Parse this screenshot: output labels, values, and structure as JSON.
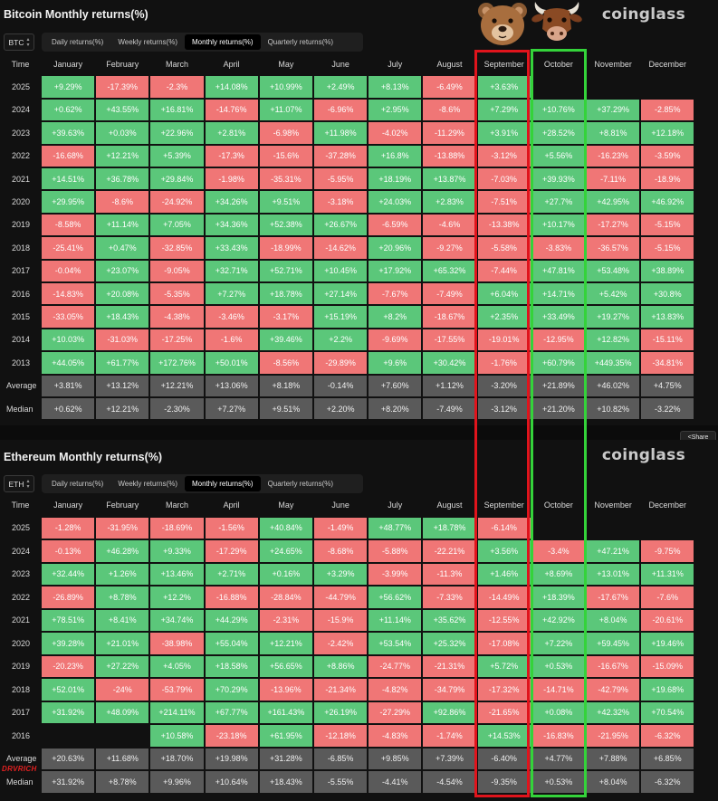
{
  "colors": {
    "positive": "#5bc77a",
    "negative": "#f07676",
    "stat": "#5a5a5a",
    "highlight_sep": "#e0141c",
    "highlight_oct": "#34d33a"
  },
  "months": [
    "January",
    "February",
    "March",
    "April",
    "May",
    "June",
    "July",
    "August",
    "September",
    "October",
    "November",
    "December"
  ],
  "time_label": "Time",
  "share_label": "Share",
  "watermark": "DRVRICH",
  "icons": {
    "bear": "bear-face-icon",
    "bull": "bull-face-icon",
    "share": "share-icon",
    "selector": "chevron-updown-icon"
  },
  "btc": {
    "title": "Bitcoin Monthly returns(%)",
    "brand": "coinglass",
    "coin": "BTC",
    "tabs": [
      "Daily returns(%)",
      "Weekly returns(%)",
      "Monthly returns(%)",
      "Quarterly returns(%)"
    ],
    "active_tab": 2,
    "rows": [
      {
        "year": "2025",
        "values": [
          "+9.29%",
          "-17.39%",
          "-2.3%",
          "+14.08%",
          "+10.99%",
          "+2.49%",
          "+8.13%",
          "-6.49%",
          "+3.63%",
          "",
          "",
          ""
        ]
      },
      {
        "year": "2024",
        "values": [
          "+0.62%",
          "+43.55%",
          "+16.81%",
          "-14.76%",
          "+11.07%",
          "-6.96%",
          "+2.95%",
          "-8.6%",
          "+7.29%",
          "+10.76%",
          "+37.29%",
          "-2.85%"
        ]
      },
      {
        "year": "2023",
        "values": [
          "+39.63%",
          "+0.03%",
          "+22.96%",
          "+2.81%",
          "-6.98%",
          "+11.98%",
          "-4.02%",
          "-11.29%",
          "+3.91%",
          "+28.52%",
          "+8.81%",
          "+12.18%"
        ]
      },
      {
        "year": "2022",
        "values": [
          "-16.68%",
          "+12.21%",
          "+5.39%",
          "-17.3%",
          "-15.6%",
          "-37.28%",
          "+16.8%",
          "-13.88%",
          "-3.12%",
          "+5.56%",
          "-16.23%",
          "-3.59%"
        ]
      },
      {
        "year": "2021",
        "values": [
          "+14.51%",
          "+36.78%",
          "+29.84%",
          "-1.98%",
          "-35.31%",
          "-5.95%",
          "+18.19%",
          "+13.87%",
          "-7.03%",
          "+39.93%",
          "-7.11%",
          "-18.9%"
        ]
      },
      {
        "year": "2020",
        "values": [
          "+29.95%",
          "-8.6%",
          "-24.92%",
          "+34.26%",
          "+9.51%",
          "-3.18%",
          "+24.03%",
          "+2.83%",
          "-7.51%",
          "+27.7%",
          "+42.95%",
          "+46.92%"
        ]
      },
      {
        "year": "2019",
        "values": [
          "-8.58%",
          "+11.14%",
          "+7.05%",
          "+34.36%",
          "+52.38%",
          "+26.67%",
          "-6.59%",
          "-4.6%",
          "-13.38%",
          "+10.17%",
          "-17.27%",
          "-5.15%"
        ]
      },
      {
        "year": "2018",
        "values": [
          "-25.41%",
          "+0.47%",
          "-32.85%",
          "+33.43%",
          "-18.99%",
          "-14.62%",
          "+20.96%",
          "-9.27%",
          "-5.58%",
          "-3.83%",
          "-36.57%",
          "-5.15%"
        ]
      },
      {
        "year": "2017",
        "values": [
          "-0.04%",
          "+23.07%",
          "-9.05%",
          "+32.71%",
          "+52.71%",
          "+10.45%",
          "+17.92%",
          "+65.32%",
          "-7.44%",
          "+47.81%",
          "+53.48%",
          "+38.89%"
        ]
      },
      {
        "year": "2016",
        "values": [
          "-14.83%",
          "+20.08%",
          "-5.35%",
          "+7.27%",
          "+18.78%",
          "+27.14%",
          "-7.67%",
          "-7.49%",
          "+6.04%",
          "+14.71%",
          "+5.42%",
          "+30.8%"
        ]
      },
      {
        "year": "2015",
        "values": [
          "-33.05%",
          "+18.43%",
          "-4.38%",
          "-3.46%",
          "-3.17%",
          "+15.19%",
          "+8.2%",
          "-18.67%",
          "+2.35%",
          "+33.49%",
          "+19.27%",
          "+13.83%"
        ]
      },
      {
        "year": "2014",
        "values": [
          "+10.03%",
          "-31.03%",
          "-17.25%",
          "-1.6%",
          "+39.46%",
          "+2.2%",
          "-9.69%",
          "-17.55%",
          "-19.01%",
          "-12.95%",
          "+12.82%",
          "-15.11%"
        ]
      },
      {
        "year": "2013",
        "values": [
          "+44.05%",
          "+61.77%",
          "+172.76%",
          "+50.01%",
          "-8.56%",
          "-29.89%",
          "+9.6%",
          "+30.42%",
          "-1.76%",
          "+60.79%",
          "+449.35%",
          "-34.81%"
        ]
      }
    ],
    "stats": [
      {
        "label": "Average",
        "values": [
          "+3.81%",
          "+13.12%",
          "+12.21%",
          "+13.06%",
          "+8.18%",
          "-0.14%",
          "+7.60%",
          "+1.12%",
          "-3.20%",
          "+21.89%",
          "+46.02%",
          "+4.75%"
        ]
      },
      {
        "label": "Median",
        "values": [
          "+0.62%",
          "+12.21%",
          "-2.30%",
          "+7.27%",
          "+9.51%",
          "+2.20%",
          "+8.20%",
          "-7.49%",
          "-3.12%",
          "+21.20%",
          "+10.82%",
          "-3.22%"
        ]
      }
    ]
  },
  "eth": {
    "title": "Ethereum Monthly returns(%)",
    "brand": "coinglass",
    "coin": "ETH",
    "tabs": [
      "Daily returns(%)",
      "Weekly returns(%)",
      "Monthly returns(%)",
      "Quarterly returns(%)"
    ],
    "active_tab": 2,
    "rows": [
      {
        "year": "2025",
        "values": [
          "-1.28%",
          "-31.95%",
          "-18.69%",
          "-1.56%",
          "+40.84%",
          "-1.49%",
          "+48.77%",
          "+18.78%",
          "-6.14%",
          "",
          "",
          ""
        ]
      },
      {
        "year": "2024",
        "values": [
          "-0.13%",
          "+46.28%",
          "+9.33%",
          "-17.29%",
          "+24.65%",
          "-8.68%",
          "-5.88%",
          "-22.21%",
          "+3.56%",
          "-3.4%",
          "+47.21%",
          "-9.75%"
        ]
      },
      {
        "year": "2023",
        "values": [
          "+32.44%",
          "+1.26%",
          "+13.46%",
          "+2.71%",
          "+0.16%",
          "+3.29%",
          "-3.99%",
          "-11.3%",
          "+1.46%",
          "+8.69%",
          "+13.01%",
          "+11.31%"
        ]
      },
      {
        "year": "2022",
        "values": [
          "-26.89%",
          "+8.78%",
          "+12.2%",
          "-16.88%",
          "-28.84%",
          "-44.79%",
          "+56.62%",
          "-7.33%",
          "-14.49%",
          "+18.39%",
          "-17.67%",
          "-7.6%"
        ]
      },
      {
        "year": "2021",
        "values": [
          "+78.51%",
          "+8.41%",
          "+34.74%",
          "+44.29%",
          "-2.31%",
          "-15.9%",
          "+11.14%",
          "+35.62%",
          "-12.55%",
          "+42.92%",
          "+8.04%",
          "-20.61%"
        ]
      },
      {
        "year": "2020",
        "values": [
          "+39.28%",
          "+21.01%",
          "-38.98%",
          "+55.04%",
          "+12.21%",
          "-2.42%",
          "+53.54%",
          "+25.32%",
          "-17.08%",
          "+7.22%",
          "+59.45%",
          "+19.46%"
        ]
      },
      {
        "year": "2019",
        "values": [
          "-20.23%",
          "+27.22%",
          "+4.05%",
          "+18.58%",
          "+56.65%",
          "+8.86%",
          "-24.77%",
          "-21.31%",
          "+5.72%",
          "+0.53%",
          "-16.67%",
          "-15.09%"
        ]
      },
      {
        "year": "2018",
        "values": [
          "+52.01%",
          "-24%",
          "-53.79%",
          "+70.29%",
          "-13.96%",
          "-21.34%",
          "-4.82%",
          "-34.79%",
          "-17.32%",
          "-14.71%",
          "-42.79%",
          "+19.68%"
        ]
      },
      {
        "year": "2017",
        "values": [
          "+31.92%",
          "+48.09%",
          "+214.11%",
          "+67.77%",
          "+161.43%",
          "+26.19%",
          "-27.29%",
          "+92.86%",
          "-21.65%",
          "+0.08%",
          "+42.32%",
          "+70.54%"
        ]
      },
      {
        "year": "2016",
        "values": [
          "",
          "",
          "+10.58%",
          "-23.18%",
          "+61.95%",
          "-12.18%",
          "-4.83%",
          "-1.74%",
          "+14.53%",
          "-16.83%",
          "-21.95%",
          "-6.32%"
        ]
      }
    ],
    "stats": [
      {
        "label": "Average",
        "values": [
          "+20.63%",
          "+11.68%",
          "+18.70%",
          "+19.98%",
          "+31.28%",
          "-6.85%",
          "+9.85%",
          "+7.39%",
          "-6.40%",
          "+4.77%",
          "+7.88%",
          "+6.85%"
        ]
      },
      {
        "label": "Median",
        "values": [
          "+31.92%",
          "+8.78%",
          "+9.96%",
          "+10.64%",
          "+18.43%",
          "-5.55%",
          "-4.41%",
          "-4.54%",
          "-9.35%",
          "+0.53%",
          "+8.04%",
          "-6.32%"
        ]
      }
    ]
  }
}
